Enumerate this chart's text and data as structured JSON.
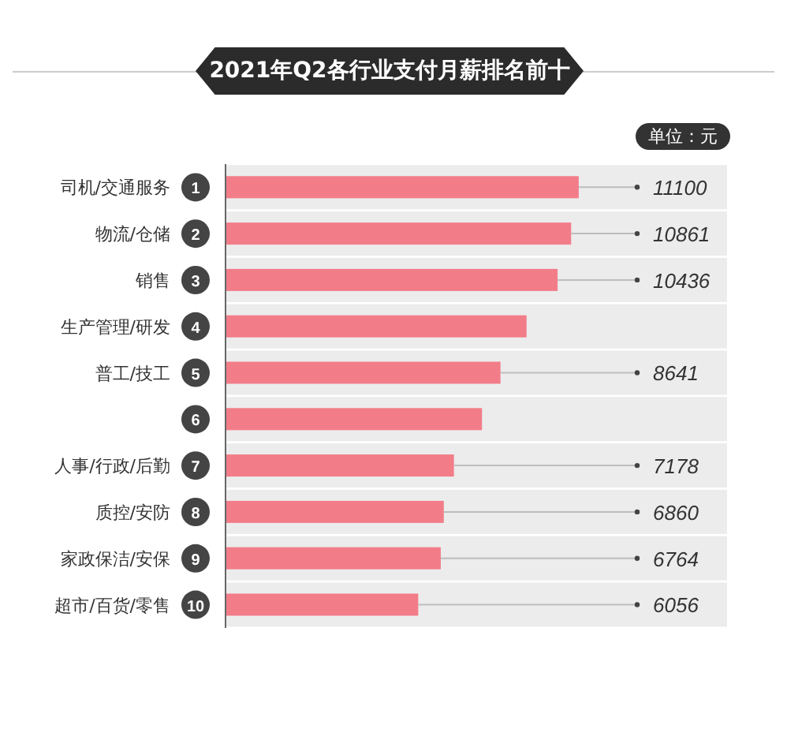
{
  "chart_data": {
    "type": "bar",
    "orientation": "horizontal",
    "title": "2021年Q2各行业支付月薪排名前十",
    "xlabel": "单位：元",
    "categories": [
      "司机/交通服务",
      "物流/仓储",
      "销售",
      "生产管理/研发",
      "普工/技工",
      null,
      "人事/行政/后勤",
      "质控/安防",
      "家政保洁/安保",
      "超市/百货/零售"
    ],
    "values": [
      11100,
      10861,
      10436,
      9460,
      8641,
      8060,
      7178,
      6860,
      6764,
      6056
    ],
    "value_labels": [
      "11100",
      "10861",
      "10436",
      null,
      "8641",
      null,
      "7178",
      "6860",
      "6764",
      "6056"
    ],
    "annotations": [
      "1",
      "2",
      "3",
      "4",
      "5",
      "6",
      "7",
      "8",
      "9",
      "10"
    ],
    "color": "#f27d89"
  }
}
